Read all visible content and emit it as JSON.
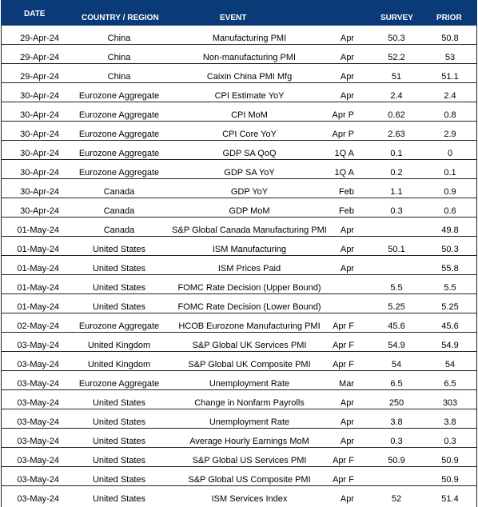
{
  "header": {
    "date": "DATE",
    "country": "COUNTRY / REGION",
    "event": "EVENT",
    "survey": "SURVEY",
    "prior": "PRIOR"
  },
  "colors": {
    "header_background": "#0b3a78",
    "header_text": "#ffffff"
  },
  "rows": [
    {
      "date": "29-Apr-24",
      "country": "China",
      "event": "Manufacturing PMI",
      "period": "Apr",
      "survey": "50.3",
      "prior": "50.8"
    },
    {
      "date": "29-Apr-24",
      "country": "China",
      "event": "Non-manufacturing PMI",
      "period": "Apr",
      "survey": "52.2",
      "prior": "53"
    },
    {
      "date": "29-Apr-24",
      "country": "China",
      "event": "Caixin China PMI Mfg",
      "period": "Apr",
      "survey": "51",
      "prior": "51.1"
    },
    {
      "date": "30-Apr-24",
      "country": "Eurozone Aggregate",
      "event": "CPI Estimate YoY",
      "period": "Apr",
      "survey": "2.4",
      "prior": "2.4"
    },
    {
      "date": "30-Apr-24",
      "country": "Eurozone Aggregate",
      "event": "CPI MoM",
      "period": "Apr P",
      "survey": "0.62",
      "prior": "0.8"
    },
    {
      "date": "30-Apr-24",
      "country": "Eurozone Aggregate",
      "event": "CPI Core YoY",
      "period": "Apr P",
      "survey": "2.63",
      "prior": "2.9"
    },
    {
      "date": "30-Apr-24",
      "country": "Eurozone Aggregate",
      "event": "GDP SA QoQ",
      "period": "1Q A",
      "survey": "0.1",
      "prior": "0"
    },
    {
      "date": "30-Apr-24",
      "country": "Eurozone Aggregate",
      "event": "GDP SA YoY",
      "period": "1Q A",
      "survey": "0.2",
      "prior": "0.1"
    },
    {
      "date": "30-Apr-24",
      "country": "Canada",
      "event": "GDP YoY",
      "period": "Feb",
      "survey": "1.1",
      "prior": "0.9"
    },
    {
      "date": "30-Apr-24",
      "country": "Canada",
      "event": "GDP MoM",
      "period": "Feb",
      "survey": "0.3",
      "prior": "0.6"
    },
    {
      "date": "01-May-24",
      "country": "Canada",
      "event": "S&P Global Canada Manufacturing PMI",
      "period": "Apr",
      "survey": "",
      "prior": "49.8"
    },
    {
      "date": "01-May-24",
      "country": "United States",
      "event": "ISM Manufacturing",
      "period": "Apr",
      "survey": "50.1",
      "prior": "50.3"
    },
    {
      "date": "01-May-24",
      "country": "United States",
      "event": "ISM Prices Paid",
      "period": "Apr",
      "survey": "",
      "prior": "55.8"
    },
    {
      "date": "01-May-24",
      "country": "United States",
      "event": "FOMC Rate Decision (Upper Bound)",
      "period": "",
      "survey": "5.5",
      "prior": "5.5"
    },
    {
      "date": "01-May-24",
      "country": "United States",
      "event": "FOMC Rate Decision (Lower Bound)",
      "period": "",
      "survey": "5.25",
      "prior": "5.25"
    },
    {
      "date": "02-May-24",
      "country": "Eurozone Aggregate",
      "event": "HCOB Eurozone Manufacturing PMI",
      "period": "Apr F",
      "survey": "45.6",
      "prior": "45.6"
    },
    {
      "date": "03-May-24",
      "country": "United Kingdom",
      "event": "S&P Global UK Services PMI",
      "period": "Apr F",
      "survey": "54.9",
      "prior": "54.9"
    },
    {
      "date": "03-May-24",
      "country": "United Kingdom",
      "event": "S&P Global UK Composite PMI",
      "period": "Apr F",
      "survey": "54",
      "prior": "54"
    },
    {
      "date": "03-May-24",
      "country": "Eurozone Aggregate",
      "event": "Unemployment Rate",
      "period": "Mar",
      "survey": "6.5",
      "prior": "6.5"
    },
    {
      "date": "03-May-24",
      "country": "United States",
      "event": "Change in Nonfarm Payrolls",
      "period": "Apr",
      "survey": "250",
      "prior": "303"
    },
    {
      "date": "03-May-24",
      "country": "United States",
      "event": "Unemployment Rate",
      "period": "Apr",
      "survey": "3.8",
      "prior": "3.8"
    },
    {
      "date": "03-May-24",
      "country": "United States",
      "event": "Average Hourly Earnings MoM",
      "period": "Apr",
      "survey": "0.3",
      "prior": "0.3"
    },
    {
      "date": "03-May-24",
      "country": "United States",
      "event": "S&P Global US Services PMI",
      "period": "Apr F",
      "survey": "50.9",
      "prior": "50.9"
    },
    {
      "date": "03-May-24",
      "country": "United States",
      "event": "S&P Global US Composite PMI",
      "period": "Apr F",
      "survey": "",
      "prior": "50.9"
    },
    {
      "date": "03-May-24",
      "country": "United States",
      "event": "ISM Services Index",
      "period": "Apr",
      "survey": "52",
      "prior": "51.4"
    }
  ]
}
